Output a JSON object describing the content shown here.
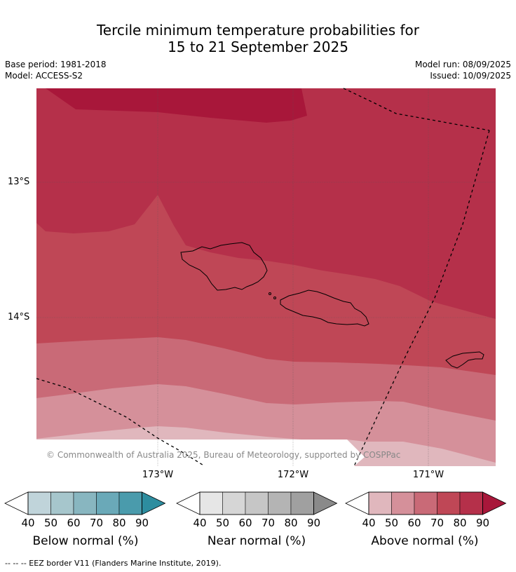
{
  "title": {
    "line1": "Tercile minimum temperature probabilities for",
    "line2": "15 to 21 September 2025"
  },
  "meta": {
    "base_period": "Base period: 1981-2018",
    "model": "Model: ACCESS-S2",
    "model_run": "Model run: 08/09/2025",
    "issued": "Issued: 10/09/2025"
  },
  "map": {
    "lon_labels": [
      "173°W",
      "172°W",
      "171°W"
    ],
    "lat_labels": [
      "13°S",
      "14°S"
    ],
    "copyright": "© Commonwealth of Australia 2025, Bureau of Meteorology, supported by COSPPac",
    "colors": {
      "above_40": "#e0b7bd",
      "above_50": "#d5909a",
      "above_60": "#c96a77",
      "above_70": "#bf4756",
      "above_80": "#b5304a",
      "above_90": "#a8173a"
    }
  },
  "colorbars": [
    {
      "label": "Below normal (%)",
      "ticks": [
        "40",
        "50",
        "60",
        "70",
        "80",
        "90"
      ],
      "colors": [
        "#c0d4da",
        "#a6c6cc",
        "#88b6c0",
        "#6aa9b8",
        "#4a9bac",
        "#2d8d9f"
      ]
    },
    {
      "label": "Near normal (%)",
      "ticks": [
        "40",
        "50",
        "60",
        "70",
        "80",
        "90"
      ],
      "colors": [
        "#e6e6e6",
        "#d6d6d6",
        "#c6c6c6",
        "#b4b4b4",
        "#a0a0a0",
        "#8a8a8a"
      ]
    },
    {
      "label": "Above normal (%)",
      "ticks": [
        "40",
        "50",
        "60",
        "70",
        "80",
        "90"
      ],
      "colors": [
        "#e0b7bd",
        "#d5909a",
        "#c96a77",
        "#bf4756",
        "#b5304a",
        "#a8173a"
      ]
    }
  ],
  "footnote": "--  --  -- EEZ border V11 (Flanders Marine Institute, 2019)."
}
